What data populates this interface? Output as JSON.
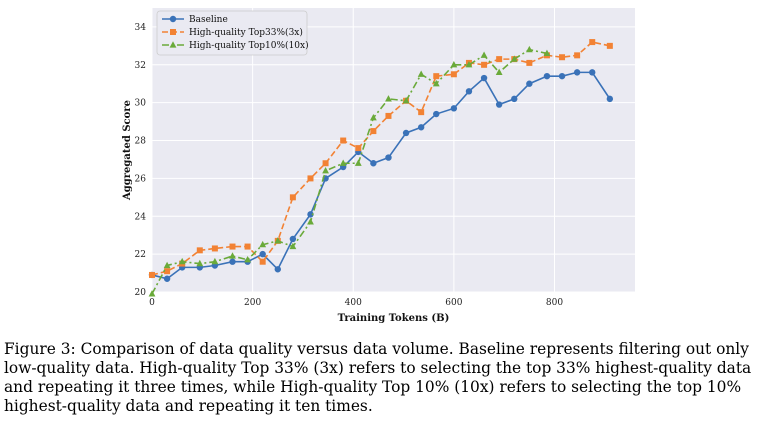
{
  "chart_data": {
    "type": "line",
    "xlabel": "Training Tokens (B)",
    "ylabel": "Aggregated Score",
    "xlim": [
      0,
      960
    ],
    "ylim": [
      20,
      35
    ],
    "xticks": [
      0,
      200,
      400,
      600,
      800
    ],
    "yticks": [
      20,
      22,
      24,
      26,
      28,
      30,
      32,
      34
    ],
    "grid": true,
    "legend_position": "top-left",
    "series": [
      {
        "name": "Baseline",
        "color": "#3a72b8",
        "marker": "circle",
        "dash": "solid",
        "x": [
          0,
          30,
          60,
          95,
          125,
          160,
          190,
          220,
          250,
          280,
          315,
          345,
          380,
          410,
          440,
          470,
          505,
          535,
          565,
          600,
          630,
          660,
          690,
          720,
          750,
          785,
          815,
          845,
          875,
          910
        ],
        "y": [
          20.9,
          20.7,
          21.3,
          21.3,
          21.4,
          21.6,
          21.6,
          22.0,
          21.2,
          22.8,
          24.1,
          26.0,
          26.6,
          27.4,
          26.8,
          27.1,
          28.4,
          28.7,
          29.4,
          29.7,
          30.6,
          31.3,
          29.9,
          30.2,
          31.0,
          31.4,
          31.4,
          31.6,
          31.6,
          30.2
        ]
      },
      {
        "name": "High-quality Top33%(3x)",
        "color": "#f28234",
        "marker": "square",
        "dash": "dashed",
        "x": [
          0,
          30,
          60,
          95,
          125,
          160,
          190,
          220,
          250,
          280,
          315,
          345,
          380,
          410,
          440,
          470,
          505,
          535,
          565,
          600,
          630,
          660,
          690,
          720,
          750,
          785,
          815,
          845,
          875,
          910
        ],
        "y": [
          20.9,
          21.1,
          21.5,
          22.2,
          22.3,
          22.4,
          22.4,
          21.6,
          22.7,
          25.0,
          26.0,
          26.8,
          28.0,
          27.6,
          28.5,
          29.3,
          30.1,
          29.5,
          31.4,
          31.5,
          32.1,
          32.0,
          32.3,
          32.3,
          32.1,
          32.5,
          32.4,
          32.5,
          33.2,
          33.0
        ]
      },
      {
        "name": "High-quality Top10%(10x)",
        "color": "#6aaa3a",
        "marker": "triangle",
        "dash": "dashdot",
        "x": [
          0,
          30,
          60,
          95,
          125,
          160,
          190,
          220,
          250,
          280,
          315,
          345,
          380,
          410,
          440,
          470,
          505,
          535,
          565,
          600,
          630,
          660,
          690,
          720,
          750,
          785
        ],
        "y": [
          19.9,
          21.4,
          21.6,
          21.5,
          21.6,
          21.9,
          21.7,
          22.5,
          22.7,
          22.4,
          23.7,
          26.4,
          26.8,
          26.8,
          29.2,
          30.2,
          30.1,
          31.5,
          31.0,
          32.0,
          32.0,
          32.5,
          31.6,
          32.3,
          32.8,
          32.6
        ]
      }
    ]
  },
  "caption": "Figure 3: Comparison of data quality versus data volume. Baseline represents filtering out only low-quality data. High-quality Top 33% (3x) refers to selecting the top 33% highest-quality data and repeating it three times, while High-quality Top 10% (10x) refers to selecting the top 10% highest-quality data and repeating it ten times."
}
